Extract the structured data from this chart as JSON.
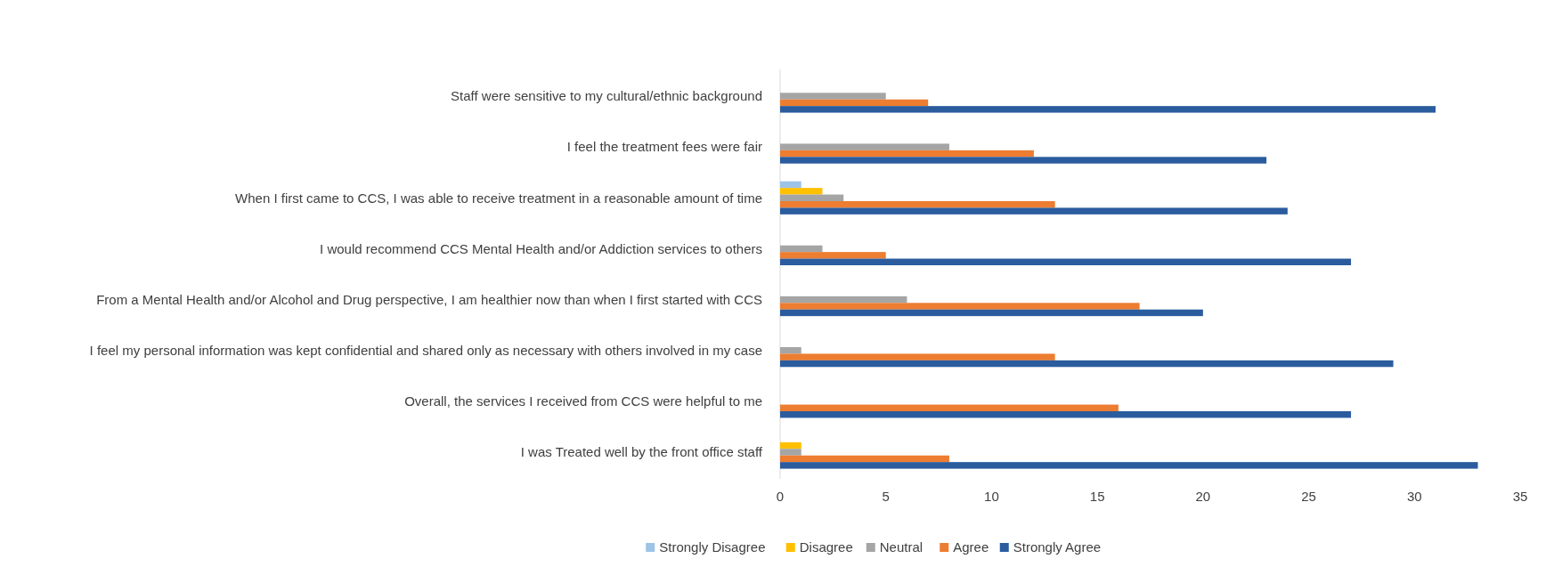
{
  "chart_data": {
    "type": "bar",
    "orientation": "horizontal",
    "categories": [
      "Staff were sensitive to my cultural/ethnic background",
      "I feel the treatment fees were fair",
      "When I first came to CCS, I was able to receive treatment in a reasonable amount of time",
      "I would recommend CCS Mental Health and/or Addiction services to others",
      "From a Mental Health and/or Alcohol and Drug perspective, I am healthier now than when I first started with CCS",
      "I feel my personal information was kept confidential and shared only as necessary with others involved in my case",
      "Overall, the services I received from CCS were helpful to me",
      "I was Treated well by the front office staff"
    ],
    "series": [
      {
        "name": "Strongly Disagree",
        "color": "#9dc3e6",
        "values": [
          null,
          null,
          1,
          null,
          null,
          null,
          null,
          null
        ]
      },
      {
        "name": "Disagree",
        "color": "#ffc000",
        "values": [
          null,
          null,
          2,
          null,
          null,
          null,
          null,
          1
        ]
      },
      {
        "name": "Neutral",
        "color": "#a5a5a5",
        "values": [
          5,
          8,
          3,
          2,
          6,
          1,
          null,
          1
        ]
      },
      {
        "name": "Agree",
        "color": "#ed7d31",
        "values": [
          7,
          12,
          13,
          5,
          17,
          13,
          16,
          8
        ]
      },
      {
        "name": "Strongly Agree",
        "color": "#2b5c9e",
        "values": [
          31,
          23,
          24,
          27,
          20,
          29,
          27,
          33
        ]
      }
    ],
    "xlim": [
      0,
      35
    ],
    "xticks": [
      0,
      5,
      10,
      15,
      20,
      25,
      30,
      35
    ],
    "grid": false,
    "legend": "bottom"
  }
}
